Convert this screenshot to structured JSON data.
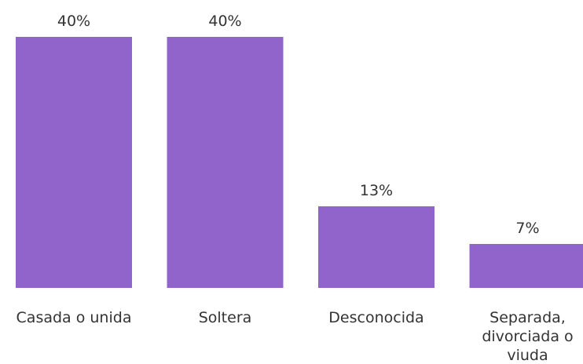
{
  "chart_data": {
    "type": "bar",
    "categories": [
      "Casada o unida",
      "Soltera",
      "Desconocida",
      "Separada, divorciada o viuda"
    ],
    "category_lines": [
      [
        "Casada o unida"
      ],
      [
        "Soltera"
      ],
      [
        "Desconocida"
      ],
      [
        "Separada,",
        "divorciada o",
        "viuda"
      ]
    ],
    "values": [
      40,
      40,
      13,
      7
    ],
    "value_labels": [
      "40%",
      "40%",
      "13%",
      "7%"
    ],
    "ylim": [
      0,
      40
    ],
    "grid": false,
    "bar_color": "#9164cc"
  }
}
